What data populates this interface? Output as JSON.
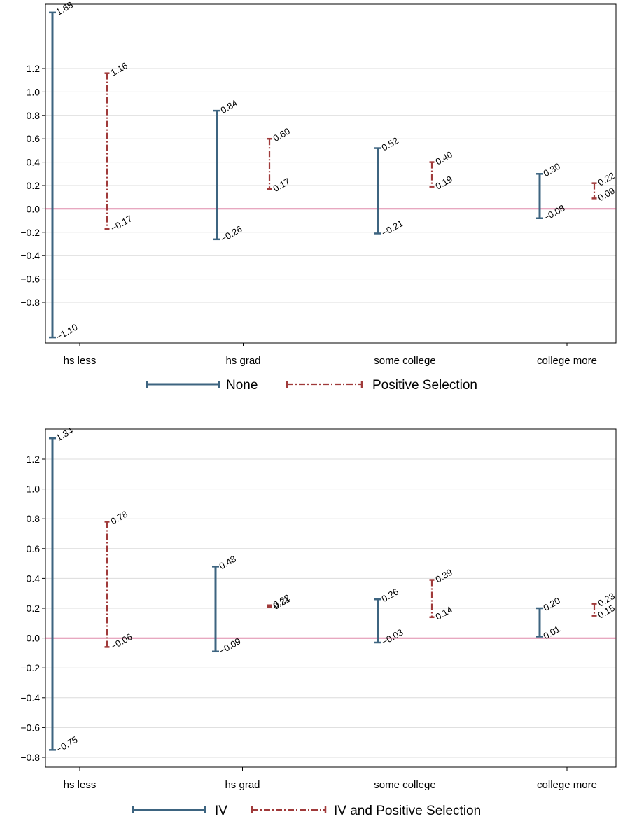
{
  "colors": {
    "series1": "#3d6480",
    "series2": "#a03a3a",
    "zero_line": "#c2185b",
    "grid": "#dcdcdc"
  },
  "chart_data": [
    {
      "type": "errorbar",
      "title": "",
      "xlabel": "",
      "ylabel": "",
      "categories": [
        "hs less",
        "hs grad",
        "some college",
        "college more"
      ],
      "ylim": [
        -1.1,
        1.68
      ],
      "yticks": [
        -0.8,
        -0.6,
        -0.4,
        -0.2,
        0.0,
        0.2,
        0.4,
        0.6,
        0.8,
        1.0,
        1.2
      ],
      "ytick_labels": [
        "−0.8",
        "−0.6",
        "−0.4",
        "−0.2",
        "0.0",
        "0.2",
        "0.4",
        "0.6",
        "0.8",
        "1.0",
        "1.2"
      ],
      "grid": true,
      "reference_line": 0,
      "legend_position": "bottom",
      "series": [
        {
          "name": "None",
          "style": "solid",
          "lower": [
            -1.1,
            -0.26,
            -0.21,
            -0.08
          ],
          "upper": [
            1.68,
            0.84,
            0.52,
            0.3
          ],
          "lower_labels": [
            "−1.10",
            "−0.26",
            "−0.21",
            "−0.08"
          ],
          "upper_labels": [
            "1.68",
            "0.84",
            "0.52",
            "0.30"
          ]
        },
        {
          "name": "Positive Selection",
          "style": "dashdot",
          "lower": [
            -0.17,
            0.17,
            0.19,
            0.09
          ],
          "upper": [
            1.16,
            0.6,
            0.4,
            0.22
          ],
          "lower_labels": [
            "−0.17",
            "0.17",
            "0.19",
            "0.09"
          ],
          "upper_labels": [
            "1.16",
            "0.60",
            "0.40",
            "0.22"
          ]
        }
      ]
    },
    {
      "type": "errorbar",
      "title": "",
      "xlabel": "",
      "ylabel": "",
      "categories": [
        "hs less",
        "hs grad",
        "some college",
        "college more"
      ],
      "ylim": [
        -0.82,
        1.36
      ],
      "yticks": [
        -0.8,
        -0.6,
        -0.4,
        -0.2,
        0.0,
        0.2,
        0.4,
        0.6,
        0.8,
        1.0,
        1.2
      ],
      "ytick_labels": [
        "−0.8",
        "−0.6",
        "−0.4",
        "−0.2",
        "0.0",
        "0.2",
        "0.4",
        "0.6",
        "0.8",
        "1.0",
        "1.2"
      ],
      "grid": true,
      "reference_line": 0,
      "legend_position": "bottom",
      "series": [
        {
          "name": "IV",
          "style": "solid",
          "lower": [
            -0.75,
            -0.09,
            -0.03,
            0.01
          ],
          "upper": [
            1.34,
            0.48,
            0.26,
            0.2
          ],
          "lower_labels": [
            "−0.75",
            "−0.09",
            "−0.03",
            "0.01"
          ],
          "upper_labels": [
            "1.34",
            "0.48",
            "0.26",
            "0.20"
          ]
        },
        {
          "name": "IV and Positive Selection",
          "style": "dashdot",
          "lower": [
            -0.06,
            0.21,
            0.14,
            0.15
          ],
          "upper": [
            0.78,
            0.22,
            0.39,
            0.23
          ],
          "lower_labels": [
            "−0.06",
            "0.21",
            "0.14",
            "0.15"
          ],
          "upper_labels": [
            "0.78",
            "0.22",
            "0.39",
            "0.23"
          ]
        }
      ]
    }
  ]
}
